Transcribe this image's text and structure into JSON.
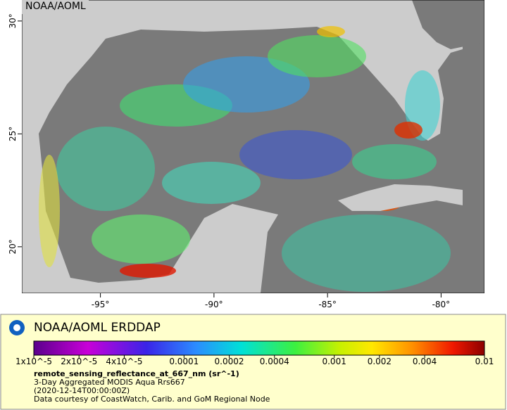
{
  "map": {
    "watermark": "NOAA/AOML",
    "xlim": [
      -98.46,
      -78.09
    ],
    "ylim": [
      17.94,
      30.93
    ],
    "xticks": [
      {
        "value": -95,
        "label": "-95°"
      },
      {
        "value": -90,
        "label": "-90°"
      },
      {
        "value": -85,
        "label": "-85°"
      },
      {
        "value": -80,
        "label": "-80°"
      }
    ],
    "yticks": [
      {
        "value": 20,
        "label": "20°"
      },
      {
        "value": 25,
        "label": "25°"
      },
      {
        "value": 30,
        "label": "30°"
      }
    ]
  },
  "legend": {
    "title": "NOAA/AOML ERDDAP",
    "colorbar": {
      "log": true,
      "lim": [
        1e-05,
        0.01
      ],
      "ticks": [
        {
          "value": 1e-05,
          "label": "1x10^-5"
        },
        {
          "value": 2e-05,
          "label": "2x10^-5"
        },
        {
          "value": 4e-05,
          "label": "4x10^-5"
        },
        0.0001,
        0.0002,
        0.0004,
        0.001,
        0.002,
        0.004,
        0.01
      ]
    },
    "variable": "remote_sensing_reflectance_at_667_nm (sr^-1)",
    "lines": [
      "3-Day Aggregated MODIS Aqua Rrs667",
      "(2020-12-14T00:00:00Z)",
      "Data courtesy of CoastWatch, Carib. and GoM Regional Node"
    ]
  }
}
